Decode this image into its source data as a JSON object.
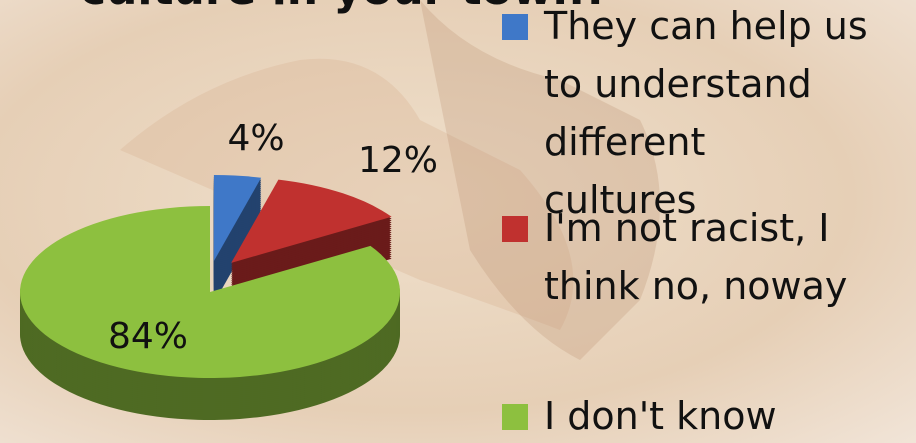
{
  "chart_data": {
    "type": "pie",
    "title": "culture in your town?",
    "categories": [
      "They can help us to understand different cultures",
      "I'm not racist, I think no, noway",
      "I don't know"
    ],
    "values": [
      4,
      12,
      84
    ],
    "value_labels": [
      "4%",
      "12%",
      "84%"
    ],
    "colors": [
      "#3f78c8",
      "#c0312f",
      "#8dc03f"
    ]
  }
}
